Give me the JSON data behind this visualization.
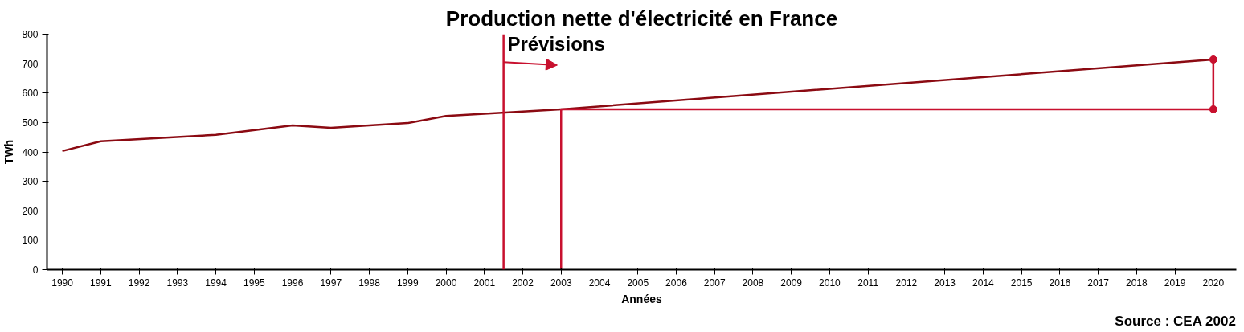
{
  "chart_data": {
    "type": "line",
    "title": "Production nette d'électricité en France",
    "xlabel": "Années",
    "ylabel": "TWh",
    "xlim": [
      1989.6,
      2020.6
    ],
    "xticks": [
      1990,
      1991,
      1992,
      1993,
      1994,
      1995,
      1996,
      1997,
      1998,
      1999,
      2000,
      2001,
      2002,
      2003,
      2004,
      2005,
      2006,
      2007,
      2008,
      2009,
      2010,
      2011,
      2012,
      2013,
      2014,
      2015,
      2016,
      2017,
      2018,
      2019,
      2020
    ],
    "ylim": [
      0,
      800
    ],
    "yticks": [
      0,
      100,
      200,
      300,
      400,
      500,
      600,
      700,
      800
    ],
    "grid": false,
    "marker": "none",
    "line_style": "solid",
    "series": [
      {
        "color": "#8b0a12",
        "x": [
          1990,
          1991,
          1994,
          1996,
          1997,
          1999,
          2000,
          2003,
          2020
        ],
        "values": [
          403,
          436,
          458,
          490,
          482,
          498,
          522,
          545,
          714
        ]
      },
      {
        "color": "#c8102e",
        "x": [
          2003,
          2003,
          2020,
          2020
        ],
        "values": [
          0,
          545,
          545,
          714
        ]
      },
      {
        "type": "scatter",
        "marker": "circle",
        "color": "#c8102e",
        "x": [
          2020,
          2020
        ],
        "values": [
          545,
          714
        ]
      }
    ],
    "ref_lines": [
      {
        "axis": "x",
        "value": 2001.5,
        "label": "Prévisions",
        "color": "#c8102e"
      }
    ],
    "annotations": [
      "Source : CEA 2002"
    ]
  }
}
